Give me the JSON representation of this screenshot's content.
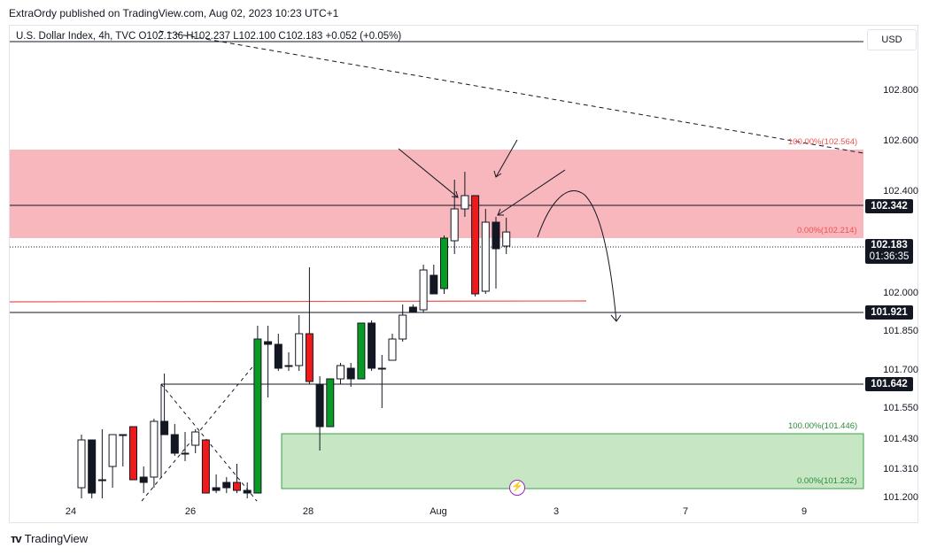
{
  "header": {
    "publish_line": "ExtraOrdy published on TradingView.com, Aug 02, 2023 10:23 UTC+1"
  },
  "legend": {
    "text": "U.S. Dollar Index, 4h, TVC  O102.136  H102.237  L102.100  C102.183  +0.052 (+0.05%)"
  },
  "currency_button": "USD",
  "price_axis": {
    "labels": [
      "102.800",
      "102.600",
      "102.400",
      "102.000",
      "101.850",
      "101.700",
      "101.550",
      "101.430",
      "101.310",
      "101.200"
    ]
  },
  "price_tags": {
    "upper_level": "102.342",
    "current_price": "102.183",
    "countdown": "01:36:35",
    "mid_level": "101.921",
    "lower_level": "101.642"
  },
  "fib_labels": {
    "red_top": "100.00%(102.564)",
    "red_bottom": "0.00%(102.214)",
    "green_top": "100.00%(101.446)",
    "green_bottom": "0.00%(101.232)"
  },
  "time_axis": {
    "labels": [
      "24",
      "26",
      "28",
      "Aug",
      "3",
      "7",
      "9"
    ]
  },
  "footer": {
    "brand": "TradingView"
  },
  "colors": {
    "up_candle": "#ffffff",
    "down_candle": "#131722",
    "bull_highlight": "#089b23",
    "bear_highlight": "#ef1a1a",
    "resistance_zone": "#f7b7bc",
    "support_zone": "#c6e6c4",
    "tag_bg": "#131722"
  },
  "chart_data": {
    "type": "candlestick",
    "timeframe": "4h",
    "symbol": "U.S. Dollar Index",
    "ylim": [
      101.18,
      102.96
    ],
    "candles": [
      {
        "o": 101.22,
        "h": 101.42,
        "l": 101.17,
        "c": 101.4,
        "color": "up"
      },
      {
        "o": 101.4,
        "h": 101.4,
        "l": 101.17,
        "c": 101.2,
        "color": "down"
      },
      {
        "o": 101.25,
        "h": 101.44,
        "l": 101.17,
        "c": 101.25,
        "color": "up"
      },
      {
        "o": 101.3,
        "h": 101.42,
        "l": 101.22,
        "c": 101.42,
        "color": "up"
      },
      {
        "o": 101.42,
        "h": 101.42,
        "l": 101.3,
        "c": 101.42,
        "color": "up"
      },
      {
        "o": 101.45,
        "h": 101.45,
        "l": 101.25,
        "c": 101.25,
        "color": "red"
      },
      {
        "o": 101.26,
        "h": 101.3,
        "l": 101.2,
        "c": 101.24,
        "color": "down"
      },
      {
        "o": 101.26,
        "h": 101.48,
        "l": 101.22,
        "c": 101.47,
        "color": "up"
      },
      {
        "o": 101.47,
        "h": 101.65,
        "l": 101.42,
        "c": 101.42,
        "color": "down"
      },
      {
        "o": 101.42,
        "h": 101.46,
        "l": 101.34,
        "c": 101.35,
        "color": "down"
      },
      {
        "o": 101.35,
        "h": 101.43,
        "l": 101.32,
        "c": 101.35,
        "color": "down"
      },
      {
        "o": 101.38,
        "h": 101.44,
        "l": 101.35,
        "c": 101.43,
        "color": "up"
      },
      {
        "o": 101.4,
        "h": 101.4,
        "l": 101.2,
        "c": 101.2,
        "color": "red"
      },
      {
        "o": 101.21,
        "h": 101.27,
        "l": 101.2,
        "c": 101.22,
        "color": "down"
      },
      {
        "o": 101.22,
        "h": 101.26,
        "l": 101.2,
        "c": 101.24,
        "color": "down"
      },
      {
        "o": 101.24,
        "h": 101.31,
        "l": 101.2,
        "c": 101.21,
        "color": "red"
      },
      {
        "o": 101.21,
        "h": 101.24,
        "l": 101.18,
        "c": 101.2,
        "color": "down"
      },
      {
        "o": 101.2,
        "h": 101.83,
        "l": 101.2,
        "c": 101.78,
        "color": "green"
      },
      {
        "o": 101.77,
        "h": 101.83,
        "l": 101.56,
        "c": 101.76,
        "color": "down"
      },
      {
        "o": 101.76,
        "h": 101.8,
        "l": 101.66,
        "c": 101.67,
        "color": "down"
      },
      {
        "o": 101.68,
        "h": 101.73,
        "l": 101.66,
        "c": 101.68,
        "color": "down"
      },
      {
        "o": 101.68,
        "h": 101.87,
        "l": 101.66,
        "c": 101.8,
        "color": "up"
      },
      {
        "o": 101.8,
        "h": 102.05,
        "l": 101.61,
        "c": 101.62,
        "color": "red"
      },
      {
        "o": 101.61,
        "h": 101.64,
        "l": 101.36,
        "c": 101.45,
        "color": "down"
      },
      {
        "o": 101.45,
        "h": 101.63,
        "l": 101.45,
        "c": 101.63,
        "color": "green"
      },
      {
        "o": 101.63,
        "h": 101.69,
        "l": 101.61,
        "c": 101.68,
        "color": "up"
      },
      {
        "o": 101.67,
        "h": 101.69,
        "l": 101.6,
        "c": 101.63,
        "color": "down"
      },
      {
        "o": 101.63,
        "h": 101.84,
        "l": 101.63,
        "c": 101.84,
        "color": "green"
      },
      {
        "o": 101.84,
        "h": 101.85,
        "l": 101.66,
        "c": 101.67,
        "color": "down"
      },
      {
        "o": 101.67,
        "h": 101.72,
        "l": 101.52,
        "c": 101.67,
        "color": "down"
      },
      {
        "o": 101.7,
        "h": 101.8,
        "l": 101.7,
        "c": 101.78,
        "color": "up"
      },
      {
        "o": 101.78,
        "h": 101.91,
        "l": 101.77,
        "c": 101.87,
        "color": "up"
      },
      {
        "o": 101.9,
        "h": 101.91,
        "l": 101.88,
        "c": 101.88,
        "color": "down"
      },
      {
        "o": 101.89,
        "h": 102.06,
        "l": 101.88,
        "c": 102.04,
        "color": "up"
      },
      {
        "o": 102.02,
        "h": 102.06,
        "l": 101.95,
        "c": 101.95,
        "color": "down"
      },
      {
        "o": 101.97,
        "h": 102.17,
        "l": 101.95,
        "c": 102.16,
        "color": "green"
      },
      {
        "o": 102.15,
        "h": 102.38,
        "l": 102.1,
        "c": 102.27,
        "color": "up"
      },
      {
        "o": 102.27,
        "h": 102.41,
        "l": 102.24,
        "c": 102.32,
        "color": "up"
      },
      {
        "o": 102.32,
        "h": 102.32,
        "l": 101.94,
        "c": 101.95,
        "color": "red"
      },
      {
        "o": 101.96,
        "h": 102.27,
        "l": 101.95,
        "c": 102.22,
        "color": "up"
      },
      {
        "o": 102.22,
        "h": 102.24,
        "l": 101.97,
        "c": 102.12,
        "color": "down"
      },
      {
        "o": 102.13,
        "h": 102.237,
        "l": 102.1,
        "c": 102.183,
        "color": "up"
      }
    ]
  }
}
